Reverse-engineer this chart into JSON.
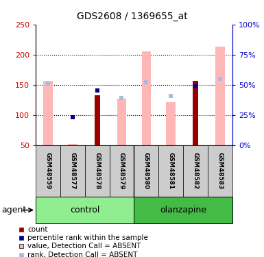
{
  "title": "GDS2608 / 1369655_at",
  "samples": [
    "GSM48559",
    "GSM48577",
    "GSM48578",
    "GSM48579",
    "GSM48580",
    "GSM48581",
    "GSM48582",
    "GSM48583"
  ],
  "red_bars": [
    null,
    null,
    133,
    null,
    null,
    null,
    157,
    null
  ],
  "blue_squares": [
    null,
    96,
    141,
    null,
    154,
    132,
    148,
    160
  ],
  "pink_bars": [
    157,
    52,
    null,
    127,
    205,
    121,
    null,
    213
  ],
  "lightblue_squares": [
    152,
    null,
    null,
    128,
    154,
    131,
    null,
    160
  ],
  "ylim_left": [
    50,
    250
  ],
  "ylim_right": [
    0,
    100
  ],
  "yticks_left": [
    50,
    100,
    150,
    200,
    250
  ],
  "yticks_right": [
    0,
    25,
    50,
    75,
    100
  ],
  "left_tick_color": "#cc0000",
  "right_tick_color": "#0000cc",
  "grid_values": [
    100,
    150,
    200
  ],
  "control_color": "#90ee90",
  "olanzapine_color": "#44bb44",
  "sample_box_color": "#cccccc",
  "legend_items": [
    {
      "color": "#9b0000",
      "marker": "s",
      "label": "count"
    },
    {
      "color": "#00008b",
      "marker": "s",
      "label": "percentile rank within the sample"
    },
    {
      "color": "#ffb6b6",
      "marker": "s",
      "label": "value, Detection Call = ABSENT"
    },
    {
      "color": "#aabbdd",
      "marker": "s",
      "label": "rank, Detection Call = ABSENT"
    }
  ]
}
